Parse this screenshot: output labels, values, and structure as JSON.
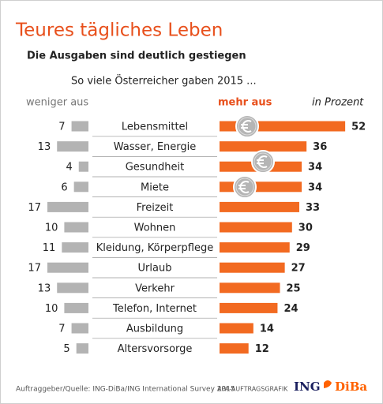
{
  "chart_data": {
    "type": "diverging-bar",
    "title": "Teures tägliches Leben",
    "subtitle": "Die Ausgaben sind deutlich gestiegen",
    "question": "So viele Österreicher gaben 2015 ...",
    "unit_label": "in Prozent",
    "categories": [
      "Lebensmittel",
      "Wasser, Energie",
      "Gesundheit",
      "Miete",
      "Freizeit",
      "Wohnen",
      "Kleidung, Körperpflege",
      "Urlaub",
      "Verkehr",
      "Telefon, Internet",
      "Ausbildung",
      "Altersvorsorge"
    ],
    "series": [
      {
        "name": "weniger aus",
        "color": "#b3b3b3",
        "values": [
          7,
          13,
          4,
          6,
          17,
          10,
          11,
          17,
          13,
          10,
          7,
          5
        ]
      },
      {
        "name": "mehr aus",
        "color": "#f26a21",
        "values": [
          52,
          36,
          34,
          34,
          33,
          30,
          29,
          27,
          25,
          24,
          14,
          12
        ]
      }
    ]
  },
  "footer": {
    "source": "Auftraggeber/Quelle: ING-DiBa/ING International Survey 2015",
    "credit": "APA-AUFTRAGSGRAFIK",
    "logo_left": "ING",
    "logo_right": "DiBa"
  }
}
